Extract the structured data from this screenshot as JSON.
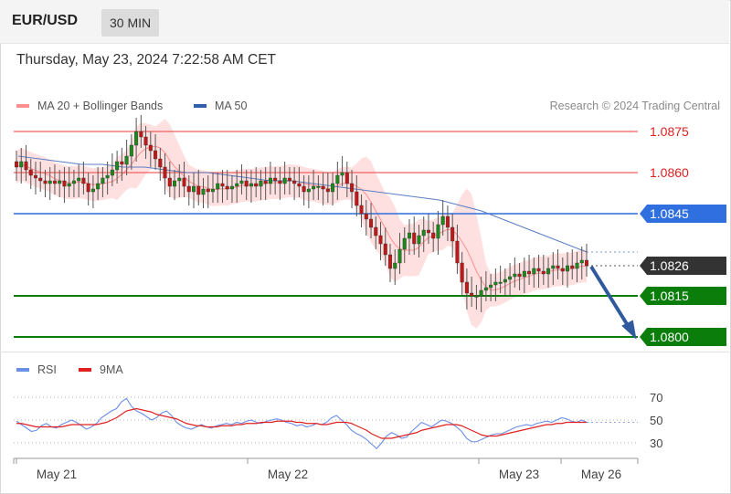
{
  "header": {
    "pair": "EUR/USD",
    "timeframe": "30 MIN"
  },
  "timestamp": "Thursday, May 23, 2024 7:22:58 AM CET",
  "legend": {
    "ma20": {
      "label": "MA 20 + Bollinger Bands",
      "color": "#ff8f8f"
    },
    "ma50": {
      "label": "MA 50",
      "color": "#2f5fa8"
    },
    "rsi": {
      "label": "RSI",
      "color": "#6a8fe6"
    },
    "rsi_ma": {
      "label": "9MA",
      "color": "#e02020"
    }
  },
  "copyright": "Research © 2024 Trading Central",
  "chart_data": {
    "type": "candlestick",
    "title": "EUR/USD",
    "timeframe": "30 MIN",
    "x_ticks": [
      "May 21",
      "May 22",
      "May 23",
      "May 26"
    ],
    "y_range": [
      1.0793,
      1.0885
    ],
    "levels": [
      {
        "value": 1.0875,
        "label": "1.0875",
        "kind": "resistance",
        "color": "#f06060",
        "text_color": "#e02020"
      },
      {
        "value": 1.086,
        "label": "1.0860",
        "kind": "resistance",
        "color": "#f06060",
        "text_color": "#e02020"
      },
      {
        "value": 1.0845,
        "label": "1.0845",
        "kind": "pivot",
        "color": "#2f6fe0"
      },
      {
        "value": 1.0826,
        "label": "1.0826",
        "kind": "last",
        "color": "#333333"
      },
      {
        "value": 1.0815,
        "label": "1.0815",
        "kind": "support",
        "color": "#0b7d0b"
      },
      {
        "value": 1.08,
        "label": "1.0800",
        "kind": "support",
        "color": "#0b7d0b"
      }
    ],
    "close_series": [
      1.0862,
      1.0864,
      1.0861,
      1.0859,
      1.0858,
      1.0857,
      1.0856,
      1.0857,
      1.0856,
      1.0857,
      1.0855,
      1.0856,
      1.0857,
      1.0858,
      1.0856,
      1.0853,
      1.0854,
      1.0856,
      1.0858,
      1.0859,
      1.0861,
      1.0864,
      1.0863,
      1.0866,
      1.087,
      1.0875,
      1.0873,
      1.087,
      1.0868,
      1.0865,
      1.0862,
      1.0858,
      1.0855,
      1.0857,
      1.0858,
      1.0855,
      1.0853,
      1.0855,
      1.0852,
      1.0854,
      1.0853,
      1.0854,
      1.0856,
      1.0855,
      1.0854,
      1.0855,
      1.0856,
      1.0857,
      1.0855,
      1.0856,
      1.0855,
      1.0857,
      1.0856,
      1.0858,
      1.0857,
      1.0856,
      1.0858,
      1.0857,
      1.0856,
      1.0855,
      1.0853,
      1.0854,
      1.0855,
      1.0855,
      1.0854,
      1.0853,
      1.0856,
      1.0859,
      1.086,
      1.0856,
      1.0853,
      1.0848,
      1.0845,
      1.0843,
      1.084,
      1.0837,
      1.0834,
      1.083,
      1.0825,
      1.0827,
      1.0832,
      1.0836,
      1.0838,
      1.0834,
      1.0837,
      1.0839,
      1.0838,
      1.0836,
      1.0841,
      1.0844,
      1.084,
      1.0835,
      1.0827,
      1.082,
      1.0816,
      1.0815,
      1.0815,
      1.0817,
      1.0818,
      1.0819,
      1.082,
      1.082,
      1.0821,
      1.0822,
      1.0823,
      1.0822,
      1.0824,
      1.0823,
      1.0825,
      1.0824,
      1.0823,
      1.0825,
      1.0826,
      1.0825,
      1.0824,
      1.0826,
      1.0825,
      1.0827,
      1.0828,
      1.0826
    ],
    "ma50": [
      1.0866,
      1.0865,
      1.0864,
      1.0863,
      1.0863,
      1.0862,
      1.0862,
      1.0861,
      1.086,
      1.086,
      1.0859,
      1.0858,
      1.0857,
      1.0857,
      1.0856,
      1.0855,
      1.0854,
      1.0853,
      1.0852,
      1.0851,
      1.085,
      1.0848,
      1.0846,
      1.0843,
      1.084,
      1.0837,
      1.0834,
      1.0831
    ],
    "forecast": {
      "from": 1.0826,
      "to": 1.08,
      "direction": "down"
    },
    "rsi": {
      "y_ticks": [
        30,
        50,
        70
      ],
      "y_range": [
        20,
        80
      ],
      "rsi": [
        49,
        46,
        43,
        40,
        41,
        45,
        47,
        44,
        43,
        46,
        48,
        50,
        48,
        45,
        42,
        44,
        47,
        52,
        55,
        58,
        60,
        66,
        69,
        62,
        58,
        56,
        53,
        50,
        52,
        56,
        58,
        54,
        48,
        45,
        43,
        42,
        44,
        46,
        44,
        43,
        45,
        46,
        47,
        46,
        48,
        47,
        49,
        50,
        48,
        47,
        49,
        50,
        51,
        50,
        48,
        47,
        45,
        46,
        44,
        45,
        47,
        46,
        48,
        52,
        54,
        50,
        46,
        41,
        38,
        36,
        33,
        29,
        25,
        30,
        36,
        39,
        37,
        34,
        35,
        40,
        44,
        48,
        46,
        44,
        47,
        50,
        49,
        47,
        44,
        40,
        34,
        31,
        31,
        33,
        35,
        37,
        38,
        38,
        40,
        42,
        44,
        45,
        46,
        45,
        47,
        48,
        49,
        48,
        50,
        52,
        51,
        49,
        48,
        50,
        48
      ],
      "ma9": [
        47,
        47,
        46,
        45,
        44,
        44,
        44,
        44,
        44,
        44,
        45,
        46,
        46,
        46,
        46,
        46,
        46,
        47,
        48,
        50,
        52,
        55,
        58,
        59,
        60,
        59,
        58,
        57,
        55,
        54,
        53,
        52,
        51,
        49,
        47,
        46,
        45,
        45,
        44,
        44,
        44,
        45,
        45,
        45,
        46,
        46,
        47,
        47,
        47,
        48,
        48,
        48,
        49,
        49,
        49,
        49,
        48,
        48,
        47,
        47,
        47,
        46,
        46,
        47,
        48,
        48,
        48,
        47,
        45,
        43,
        41,
        38,
        36,
        34,
        34,
        34,
        35,
        36,
        37,
        38,
        39,
        41,
        42,
        43,
        44,
        45,
        46,
        46,
        46,
        45,
        43,
        41,
        39,
        37,
        36,
        36,
        36,
        37,
        38,
        39,
        40,
        41,
        42,
        43,
        44,
        45,
        46,
        46,
        47,
        47,
        48,
        48,
        48,
        48,
        48
      ]
    }
  }
}
